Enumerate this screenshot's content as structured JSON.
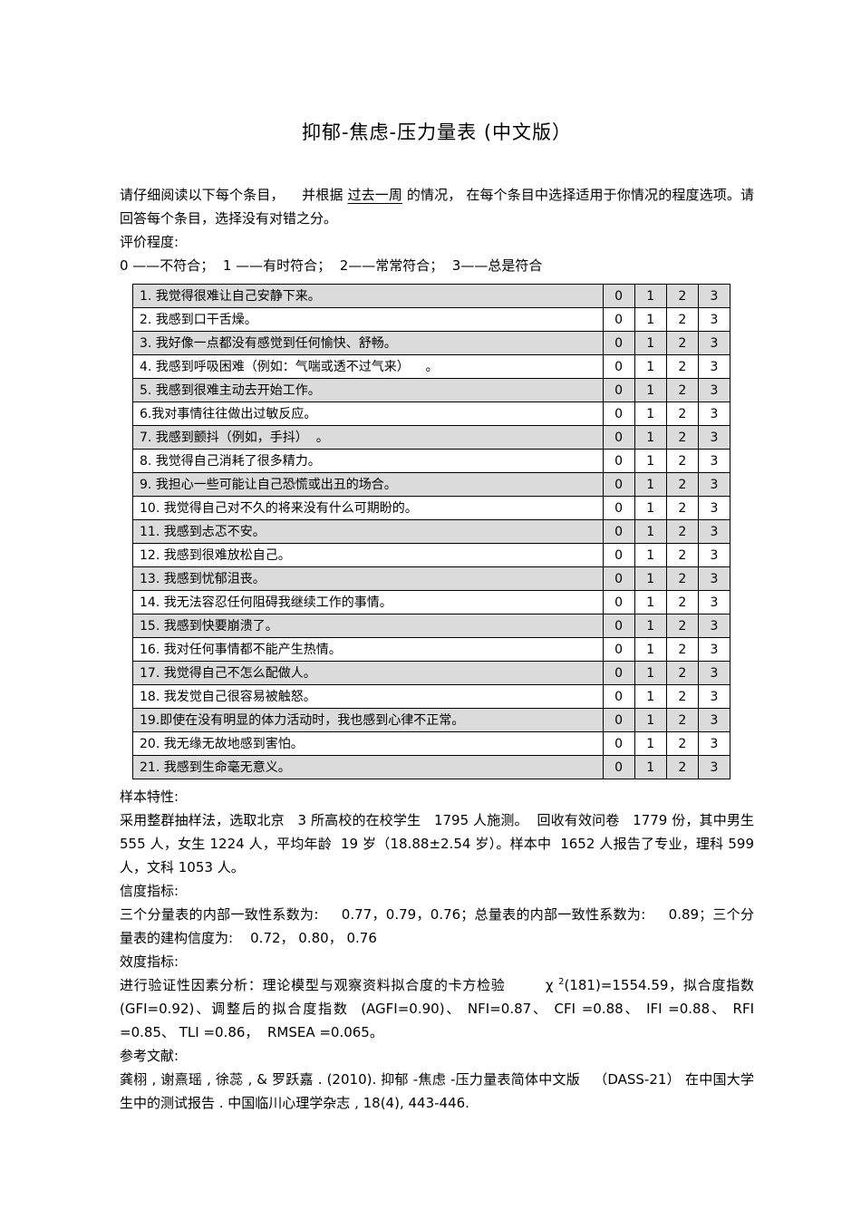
{
  "title": "抑郁-焦虑-压力量表 (中文版）",
  "intro": {
    "line_pre": "请仔细阅读以下每个条目，    并根据 ",
    "line_underline": "过去一周",
    "line_post": " 的情况， 在每个条目中选择适用于你情况的程度选项。请回答每个条目，选择没有对错之分。",
    "rating_label": "评价程度:",
    "rating_scale": "0 ——不符合；  1 ——有时符合；  2——常常符合；  3——总是符合"
  },
  "table": {
    "options": [
      "0",
      "1",
      "2",
      "3"
    ],
    "items": [
      "1. 我觉得很难让自己安静下来。",
      "2. 我感到口干舌燥。",
      "3. 我好像一点都没有感觉到任何愉快、舒畅。",
      "4. 我感到呼吸困难（例如：气喘或透不过气来）    。",
      "5. 我感到很难主动去开始工作。",
      "6.我对事情往往做出过敏反应。",
      "7. 我感到颤抖（例如，手抖）  。",
      "8. 我觉得自己消耗了很多精力。",
      "9. 我担心一些可能让自己恐慌或出丑的场合。",
      "10. 我觉得自己对不久的将来没有什么可期盼的。",
      "11. 我感到忐忑不安。",
      "12. 我感到很难放松自己。",
      "13. 我感到忧郁沮丧。",
      "14. 我无法容忍任何阻碍我继续工作的事情。",
      "15. 我感到快要崩溃了。",
      "16. 我对任何事情都不能产生热情。",
      "17. 我觉得自己不怎么配做人。",
      "18. 我发觉自己很容易被触怒。",
      "19.即使在没有明显的体力活动时，我也感到心律不正常。",
      "20. 我无缘无故地感到害怕。",
      "21. 我感到生命毫无意义。"
    ]
  },
  "sample": {
    "label": "样本特性:",
    "text": "采用整群抽样法，选取北京   3 所高校的在校学生   1795 人施测。  回收有效问卷   1779 份，其中男生 555 人，女生 1224 人，平均年龄  19 岁（18.88±2.54 岁）。样本中  1652 人报告了专业，理科 599 人，文科 1053 人。"
  },
  "reliability": {
    "label": "信度指标:",
    "text": "三个分量表的内部一致性系数为:     0.77，0.79，0.76；总量表的内部一致性系数为:     0.89；三个分量表的建构信度为:    0.72， 0.80， 0.76"
  },
  "validity": {
    "label": "效度指标:",
    "text_pre": "进行验证性因素分析：理论模型与观察资料拟合度的卡方检验        χ ",
    "chi_sup": "2",
    "text_post": "(181)=1554.59，拟合度指数(GFI=0.92)、调整后的拟合度指数  (AGFI=0.90)、 NFI=0.87、 CFI =0.88、 IFI =0.88、 RFI =0.85、 TLI =0.86，  RMSEA =0.065。"
  },
  "references": {
    "label": "参考文献:",
    "text": "龚栩 , 谢熹瑶 , 徐蕊 , & 罗跃嘉 . (2010). 抑郁 -焦虑 -压力量表简体中文版   （DASS-21） 在中国大学生中的测试报告 . 中国临川心理学杂志 , 18(4), 443-446."
  }
}
